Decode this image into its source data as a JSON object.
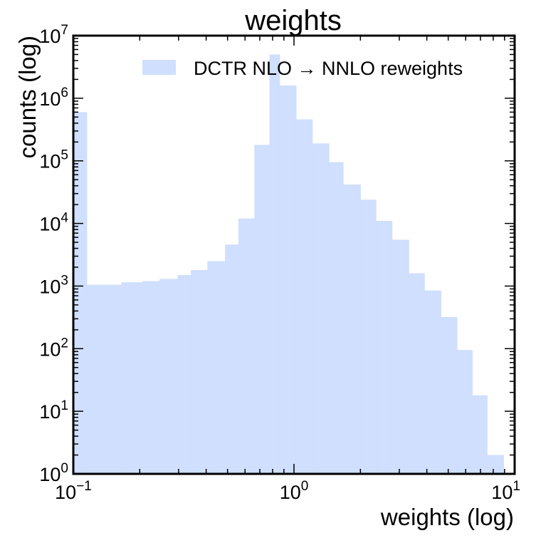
{
  "chart_data": {
    "type": "bar",
    "title": "weights",
    "xlabel": "weights (log)",
    "ylabel": "counts (log)",
    "xscale": "log",
    "yscale": "log",
    "xlim": [
      0.1,
      10
    ],
    "ylim": [
      1,
      10000000
    ],
    "xtick_labels": [
      {
        "value": 0.1,
        "base": "10",
        "exp": "−1"
      },
      {
        "value": 1,
        "base": "10",
        "exp": "0"
      },
      {
        "value": 10,
        "base": "10",
        "exp": "1"
      }
    ],
    "ytick_labels": [
      {
        "value": 1,
        "base": "10",
        "exp": "0"
      },
      {
        "value": 10,
        "base": "10",
        "exp": "1"
      },
      {
        "value": 100,
        "base": "10",
        "exp": "2"
      },
      {
        "value": 1000,
        "base": "10",
        "exp": "3"
      },
      {
        "value": 10000,
        "base": "10",
        "exp": "4"
      },
      {
        "value": 100000,
        "base": "10",
        "exp": "5"
      },
      {
        "value": 1000000,
        "base": "10",
        "exp": "6"
      },
      {
        "value": 10000000,
        "base": "10",
        "exp": "7"
      }
    ],
    "legend": {
      "placement": "upper-right"
    },
    "series": [
      {
        "name": "DCTR NLO → NNLO reweights",
        "color": "#cfdffd",
        "bins": [
          {
            "x0": 0.1,
            "x1": 0.115,
            "count": 600000
          },
          {
            "x0": 0.115,
            "x1": 0.142,
            "count": 1050
          },
          {
            "x0": 0.142,
            "x1": 0.165,
            "count": 1050
          },
          {
            "x0": 0.165,
            "x1": 0.206,
            "count": 1150
          },
          {
            "x0": 0.206,
            "x1": 0.246,
            "count": 1200
          },
          {
            "x0": 0.246,
            "x1": 0.297,
            "count": 1300
          },
          {
            "x0": 0.297,
            "x1": 0.341,
            "count": 1500
          },
          {
            "x0": 0.341,
            "x1": 0.405,
            "count": 1800
          },
          {
            "x0": 0.405,
            "x1": 0.487,
            "count": 2500
          },
          {
            "x0": 0.487,
            "x1": 0.56,
            "count": 4600
          },
          {
            "x0": 0.56,
            "x1": 0.661,
            "count": 12000
          },
          {
            "x0": 0.661,
            "x1": 0.774,
            "count": 180000
          },
          {
            "x0": 0.774,
            "x1": 0.86,
            "count": 5000000
          },
          {
            "x0": 0.86,
            "x1": 1.022,
            "count": 1600000
          },
          {
            "x0": 1.022,
            "x1": 1.21,
            "count": 460000
          },
          {
            "x0": 1.21,
            "x1": 1.44,
            "count": 190000
          },
          {
            "x0": 1.44,
            "x1": 1.67,
            "count": 95000
          },
          {
            "x0": 1.67,
            "x1": 2.0,
            "count": 42000
          },
          {
            "x0": 2.0,
            "x1": 2.35,
            "count": 24000
          },
          {
            "x0": 2.35,
            "x1": 2.78,
            "count": 11000
          },
          {
            "x0": 2.78,
            "x1": 3.31,
            "count": 5500
          },
          {
            "x0": 3.31,
            "x1": 3.9,
            "count": 1600
          },
          {
            "x0": 3.9,
            "x1": 4.63,
            "count": 850
          },
          {
            "x0": 4.63,
            "x1": 5.48,
            "count": 320
          },
          {
            "x0": 5.48,
            "x1": 6.42,
            "count": 95
          },
          {
            "x0": 6.42,
            "x1": 7.5,
            "count": 18
          },
          {
            "x0": 7.5,
            "x1": 8.9,
            "count": 2
          }
        ]
      }
    ]
  }
}
